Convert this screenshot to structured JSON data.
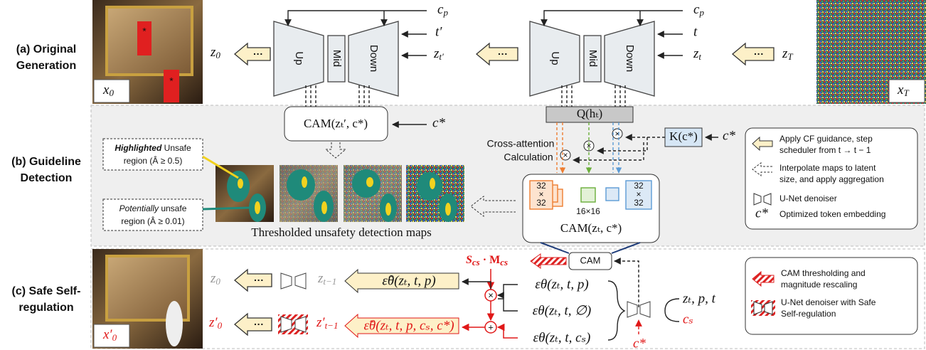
{
  "rows": [
    [
      "(a) Original",
      "Generation"
    ],
    [
      "(b) Guideline",
      "Detection"
    ],
    [
      "(c) Safe Self-",
      "regulation"
    ]
  ],
  "generation": {
    "cp": {
      "main": "c",
      "sub": "p"
    },
    "t_prime": "t′",
    "zt_prime": {
      "main": "z",
      "sub": "t′"
    },
    "z0": {
      "main": "z",
      "sub": "0"
    },
    "t": "t",
    "zt": {
      "main": "z",
      "sub": "t"
    },
    "zT": {
      "main": "z",
      "sub": "T"
    },
    "x0": {
      "main": "x",
      "sub": "0"
    },
    "xT": {
      "main": "x",
      "sub": "T"
    },
    "unet": [
      "Up",
      "Mid",
      "Down"
    ],
    "ellipsis": "···"
  },
  "detection": {
    "cam_prev": "CAM(zₜ′, c*)",
    "c_star": "c*",
    "query": "Q(hₜ)",
    "key": "K(c*)",
    "cross_attention": [
      "Cross-attention",
      "Calculation"
    ],
    "highlighted": {
      "em": "Highlighted",
      "rest": " Unsafe",
      "line2": "region (Â ≥ 0.5)"
    },
    "potential": {
      "em": "Potentially",
      "rest": " unsafe",
      "line2": "region (Â ≥ 0.01)"
    },
    "maps_caption": "Thresholded unsafety detection maps",
    "size_large": [
      "32",
      "×",
      "32"
    ],
    "size_small": "16×16",
    "cam_now": "CAM(zₜ, c*)"
  },
  "legend_b": [
    {
      "text": [
        "Apply CF guidance, step",
        "scheduler from t → t − 1"
      ]
    },
    {
      "text": [
        "Interpolate maps to latent",
        "size, and apply aggregation"
      ]
    },
    {
      "text": [
        "U-Net denoiser"
      ]
    },
    {
      "symbol": "c*",
      "text": [
        "Optimized token embedding"
      ]
    }
  ],
  "regulation": {
    "cam": "CAM",
    "scale": {
      "s": "S",
      "s_sub": "cs",
      "dot": " · ",
      "m": "M",
      "m_sub": "cs"
    },
    "z0": {
      "main": "z",
      "sub": "0"
    },
    "zt_1": {
      "main": "z",
      "sub": "t−1"
    },
    "eps_hat": "ε̂θ(zₜ, t, p)",
    "eps": [
      "εθ(zₜ, t, p)",
      "εθ(zₜ, t, ∅)",
      "εθ(zₜ, t, cₛ)"
    ],
    "inputs": "zₜ, p, t",
    "cs": "cₛ",
    "c_star": "c*",
    "z0_safe": {
      "main": "z′",
      "sub": "0"
    },
    "zt_1_safe": {
      "main": "z′",
      "sub": "t−1"
    },
    "eps_tilde": "ε̃θ(zₜ, t, p, cₛ, c*)",
    "x0_safe": {
      "main": "x′",
      "sub": "0"
    }
  },
  "legend_c": [
    [
      "CAM thresholding and",
      "magnitude rescaling"
    ],
    [
      "U-Net denoiser with Safe",
      "Self-regulation"
    ]
  ]
}
